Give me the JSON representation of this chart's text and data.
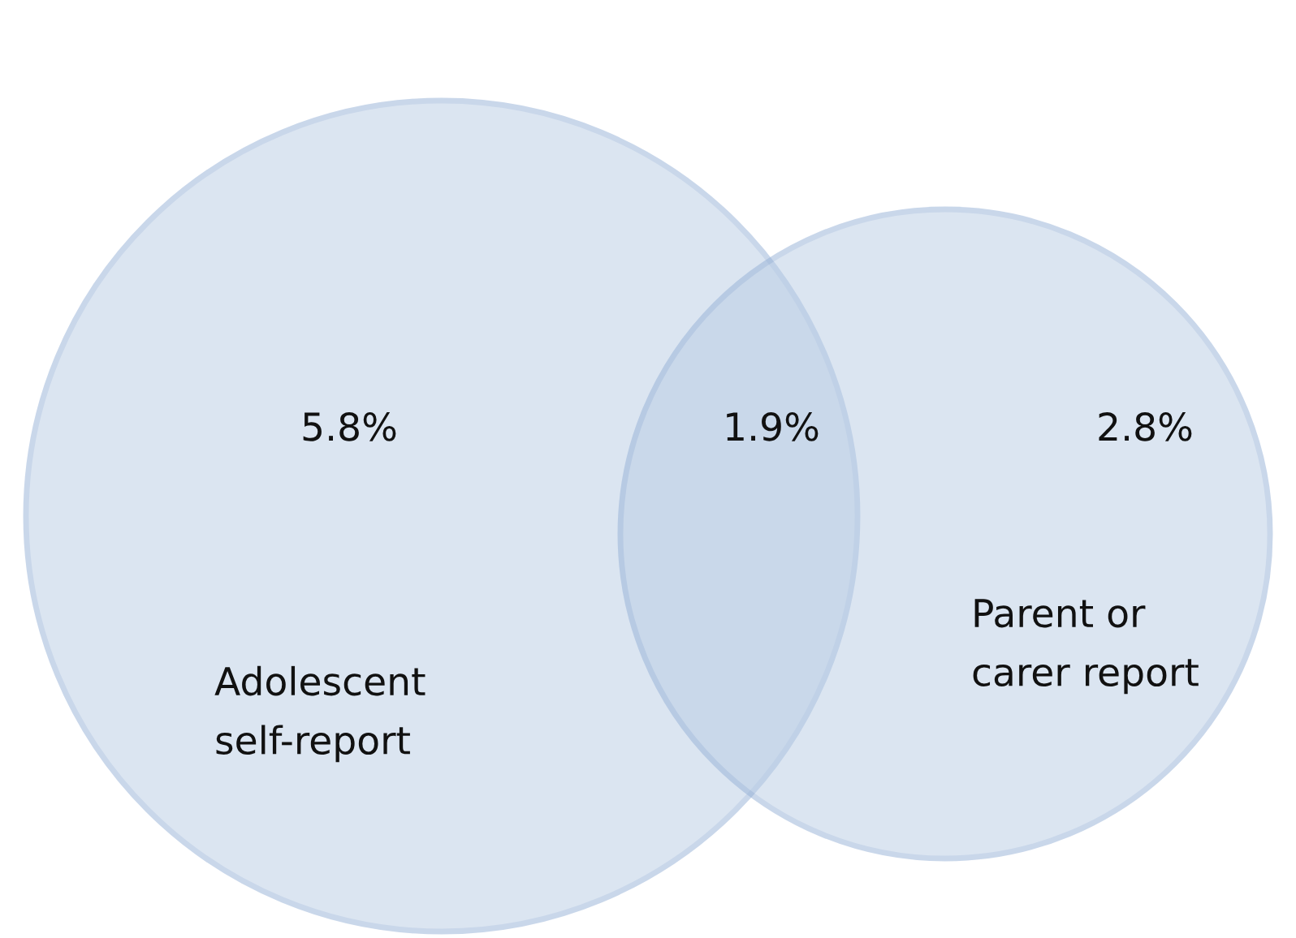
{
  "chart_data": {
    "type": "other",
    "categories": [
      "Adolescent\nself-report",
      null,
      "Parent or\ncarer report"
    ],
    "values": [
      5.8,
      1.9,
      2.8
    ],
    "value_labels": [
      "5.8%",
      "1.9%",
      "2.8%"
    ],
    "colors": [
      "#b9cde5",
      "#b9cde5",
      "#b9cde5"
    ]
  }
}
